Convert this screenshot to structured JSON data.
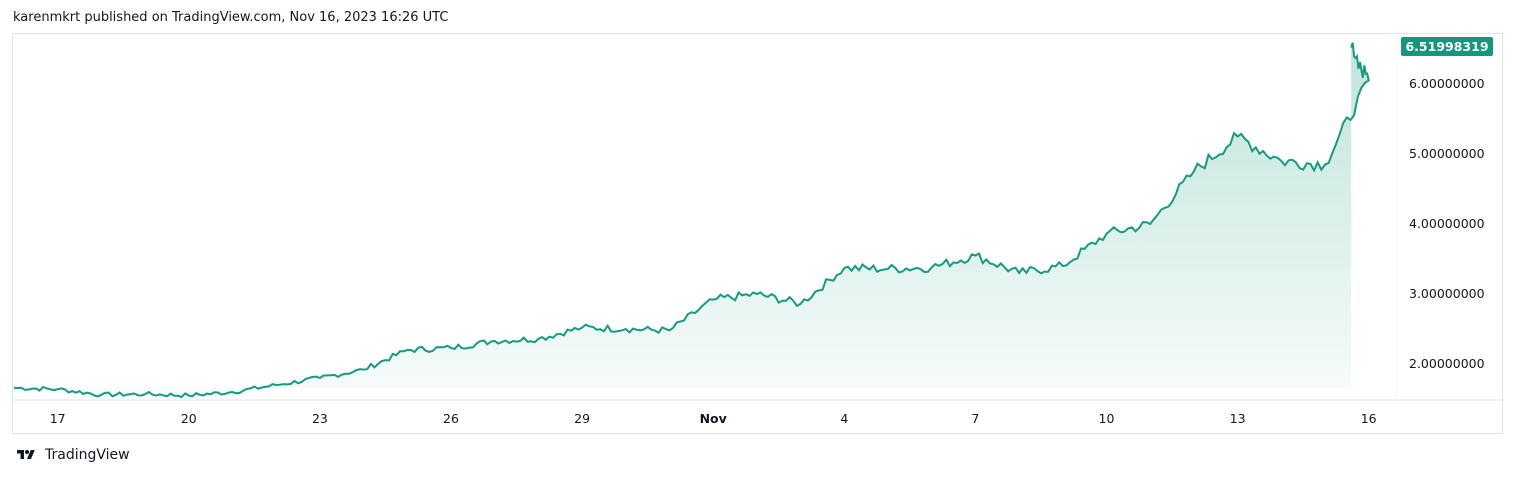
{
  "header": {
    "published_text": "karenmkrt published on TradingView.com, Nov 16, 2023 16:26 UTC"
  },
  "footer": {
    "brand": "TradingView"
  },
  "colors": {
    "line": "#179b80",
    "area_top": "#bfe4da",
    "area_bottom": "#f7fcfb",
    "price_tag": "#16967c",
    "grid": "#e0e3eb"
  },
  "chart_data": {
    "type": "area",
    "title": "",
    "xlabel": "",
    "ylabel": "",
    "x_tick_labels": [
      "17",
      "20",
      "23",
      "26",
      "29",
      "Nov",
      "4",
      "7",
      "10",
      "13",
      "16"
    ],
    "y_tick_labels": [
      "2.00000000",
      "3.00000000",
      "4.00000000",
      "5.00000000",
      "6.00000000"
    ],
    "ylim": [
      1.35,
      6.65
    ],
    "x": [
      "Oct 16",
      "Oct 17",
      "Oct 18",
      "Oct 19",
      "Oct 20",
      "Oct 21",
      "Oct 22",
      "Oct 23",
      "Oct 24",
      "Oct 25",
      "Oct 26",
      "Oct 27",
      "Oct 28",
      "Oct 29",
      "Oct 30",
      "Oct 31",
      "Nov 1",
      "Nov 2",
      "Nov 3",
      "Nov 4",
      "Nov 5",
      "Nov 6",
      "Nov 7",
      "Nov 8",
      "Nov 9",
      "Nov 10",
      "Nov 11",
      "Nov 12",
      "Nov 13",
      "Nov 14",
      "Nov 15",
      "Nov 16",
      "Nov 16 16:26"
    ],
    "series": [
      {
        "values": [
          1.66,
          1.64,
          1.56,
          1.57,
          1.55,
          1.6,
          1.7,
          1.8,
          1.92,
          2.2,
          2.23,
          2.33,
          2.36,
          2.52,
          2.5,
          2.48,
          2.92,
          3.0,
          2.86,
          3.37,
          3.36,
          3.38,
          3.55,
          3.3,
          3.4,
          3.86,
          4.0,
          4.75,
          5.25,
          4.9,
          4.85,
          6.05,
          6.52
        ]
      }
    ],
    "last_price_label": "6.51998319",
    "grid": false,
    "legend": "none"
  }
}
